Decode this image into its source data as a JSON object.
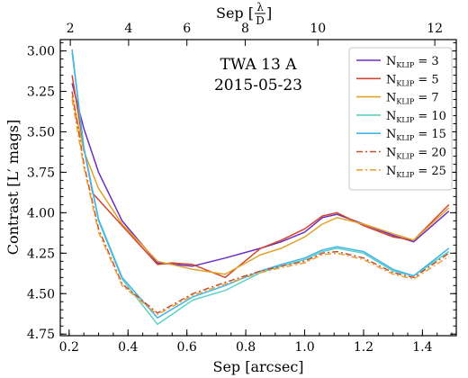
{
  "chart_data": {
    "type": "line",
    "annotation": [
      "TWA 13 A",
      "2015-05-23"
    ],
    "xlabel": "Sep [arcsec]",
    "ylabel": "Contrast [L′ mags]",
    "top_xlabel": "Sep [λ/D]",
    "xlim": [
      0.17,
      1.515
    ],
    "ylim": [
      4.76,
      2.93
    ],
    "y_inverted": true,
    "x_ticks": [
      0.2,
      0.4,
      0.6,
      0.8,
      1.0,
      1.2,
      1.4
    ],
    "x_tick_labels": [
      "0.2",
      "0.4",
      "0.6",
      "0.8",
      "1.0",
      "1.2",
      "1.4"
    ],
    "y_ticks": [
      3.0,
      3.25,
      3.5,
      3.75,
      4.0,
      4.25,
      4.5,
      4.75
    ],
    "y_tick_labels": [
      "3.00",
      "3.25",
      "3.50",
      "3.75",
      "4.00",
      "4.25",
      "4.50",
      "4.75"
    ],
    "top_ticks": [
      2,
      4,
      6,
      8,
      10,
      12
    ],
    "top_tick_labels": [
      "2",
      "4",
      "6",
      "8",
      "10",
      "12"
    ],
    "top_tick_positions_arcsec": [
      0.204,
      0.402,
      0.6,
      0.798,
      1.045,
      1.442
    ],
    "legend_position": "top-right",
    "legend_prefix": "N",
    "legend_subscript": "KLIP",
    "series": [
      {
        "name": "3",
        "color": "#6a2ec0",
        "dash": "solid",
        "x": [
          0.21,
          0.25,
          0.3,
          0.38,
          0.5,
          0.62,
          0.73,
          0.85,
          0.92,
          1.0,
          1.06,
          1.11,
          1.2,
          1.3,
          1.37,
          1.49
        ],
        "y": [
          3.2,
          3.48,
          3.75,
          4.05,
          4.31,
          4.33,
          4.28,
          4.22,
          4.18,
          4.12,
          4.03,
          4.01,
          4.07,
          4.14,
          4.18,
          3.99
        ]
      },
      {
        "name": "5",
        "color": "#d0452c",
        "dash": "solid",
        "x": [
          0.21,
          0.25,
          0.28,
          0.38,
          0.5,
          0.55,
          0.62,
          0.73,
          0.85,
          0.92,
          1.0,
          1.06,
          1.11,
          1.2,
          1.3,
          1.37,
          1.49
        ],
        "y": [
          3.15,
          3.6,
          3.88,
          4.08,
          4.32,
          4.31,
          4.32,
          4.4,
          4.22,
          4.17,
          4.1,
          4.02,
          4.0,
          4.08,
          4.15,
          4.17,
          3.95
        ]
      },
      {
        "name": "7",
        "color": "#e0a22a",
        "dash": "solid",
        "x": [
          0.21,
          0.25,
          0.3,
          0.38,
          0.5,
          0.62,
          0.73,
          0.85,
          0.92,
          1.0,
          1.06,
          1.11,
          1.2,
          1.3,
          1.37,
          1.49
        ],
        "y": [
          3.28,
          3.62,
          3.85,
          4.07,
          4.3,
          4.35,
          4.38,
          4.26,
          4.22,
          4.15,
          4.07,
          4.03,
          4.07,
          4.13,
          4.17,
          3.97
        ]
      },
      {
        "name": "10",
        "color": "#5fd0c6",
        "dash": "solid",
        "x": [
          0.21,
          0.25,
          0.3,
          0.38,
          0.5,
          0.62,
          0.73,
          0.85,
          0.92,
          1.0,
          1.06,
          1.11,
          1.2,
          1.3,
          1.37,
          1.49
        ],
        "y": [
          3.01,
          3.6,
          4.05,
          4.41,
          4.69,
          4.54,
          4.48,
          4.37,
          4.33,
          4.29,
          4.24,
          4.22,
          4.25,
          4.36,
          4.39,
          4.24
        ]
      },
      {
        "name": "15",
        "color": "#42b4ea",
        "dash": "solid",
        "x": [
          0.21,
          0.25,
          0.3,
          0.38,
          0.5,
          0.62,
          0.73,
          0.85,
          0.92,
          1.0,
          1.06,
          1.11,
          1.2,
          1.3,
          1.37,
          1.49
        ],
        "y": [
          2.99,
          3.6,
          4.04,
          4.4,
          4.65,
          4.52,
          4.45,
          4.36,
          4.32,
          4.28,
          4.23,
          4.21,
          4.24,
          4.35,
          4.39,
          4.22
        ]
      },
      {
        "name": "20",
        "color": "#c84f2c",
        "dash": "dashdot",
        "x": [
          0.21,
          0.25,
          0.3,
          0.38,
          0.5,
          0.62,
          0.73,
          0.85,
          0.92,
          1.0,
          1.06,
          1.11,
          1.2,
          1.3,
          1.37,
          1.49
        ],
        "y": [
          3.25,
          3.7,
          4.1,
          4.44,
          4.62,
          4.5,
          4.43,
          4.36,
          4.33,
          4.3,
          4.25,
          4.24,
          4.28,
          4.37,
          4.4,
          4.25
        ]
      },
      {
        "name": "25",
        "color": "#eba035",
        "dash": "dashdot",
        "x": [
          0.21,
          0.25,
          0.3,
          0.38,
          0.5,
          0.62,
          0.73,
          0.85,
          0.92,
          1.0,
          1.06,
          1.11,
          1.2,
          1.3,
          1.37,
          1.49
        ],
        "y": [
          3.3,
          3.72,
          4.12,
          4.45,
          4.63,
          4.51,
          4.44,
          4.37,
          4.34,
          4.31,
          4.26,
          4.25,
          4.29,
          4.38,
          4.41,
          4.27
        ]
      }
    ]
  }
}
